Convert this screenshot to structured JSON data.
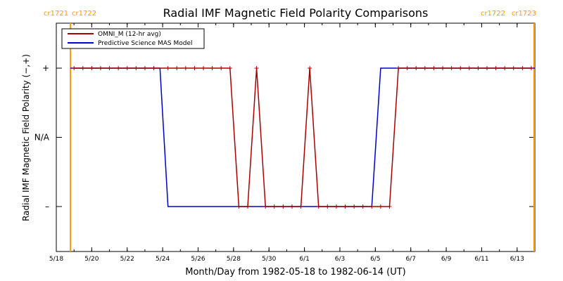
{
  "chart_data": {
    "type": "line",
    "title": "Radial IMF Magnetic Field Polarity Comparisons",
    "xlabel": "Month/Day from 1982-05-18 to 1982-06-14 (UT)",
    "ylabel": "Radial IMF Magnetic Field Polarity (−,+)",
    "xlim": [
      0,
      27
    ],
    "ylim": [
      -1.65,
      1.65
    ],
    "grid": false,
    "legend_position": "top-left",
    "xticks": [
      {
        "day": 0,
        "label": "5/18"
      },
      {
        "day": 2,
        "label": "5/20"
      },
      {
        "day": 4,
        "label": "5/22"
      },
      {
        "day": 6,
        "label": "5/24"
      },
      {
        "day": 8,
        "label": "5/26"
      },
      {
        "day": 10,
        "label": "5/28"
      },
      {
        "day": 12,
        "label": "5/30"
      },
      {
        "day": 14,
        "label": "6/1"
      },
      {
        "day": 16,
        "label": "6/3"
      },
      {
        "day": 18,
        "label": "6/5"
      },
      {
        "day": 20,
        "label": "6/7"
      },
      {
        "day": 22,
        "label": "6/9"
      },
      {
        "day": 24,
        "label": "6/11"
      },
      {
        "day": 26,
        "label": "6/13"
      }
    ],
    "yticks": [
      {
        "value": 1,
        "label": "+"
      },
      {
        "value": 0,
        "label": "N/A"
      },
      {
        "value": -1,
        "label": "–"
      }
    ],
    "carrington_markers": [
      {
        "day": 0.8,
        "left_label": "cr1721",
        "right_label": "cr1722",
        "color": "#ff9900",
        "label_side": "left"
      },
      {
        "day": 27,
        "left_label": "cr1722",
        "right_label": "cr1723",
        "color": "#ff9900",
        "label_side": "right"
      }
    ],
    "series": [
      {
        "name": "OMNI_M (12-hr avg)",
        "color": "#aa0000",
        "markers": true,
        "points": [
          [
            1,
            1
          ],
          [
            1.5,
            1
          ],
          [
            2,
            1
          ],
          [
            2.5,
            1
          ],
          [
            3,
            1
          ],
          [
            3.5,
            1
          ],
          [
            4,
            1
          ],
          [
            4.5,
            1
          ],
          [
            5,
            1
          ],
          [
            5.5,
            1
          ],
          [
            6.3,
            1
          ],
          [
            6.8,
            1
          ],
          [
            7.3,
            1
          ],
          [
            7.8,
            1
          ],
          [
            8.3,
            1
          ],
          [
            8.8,
            1
          ],
          [
            9.3,
            1
          ],
          [
            9.8,
            1
          ],
          [
            10.3,
            -1
          ],
          [
            10.8,
            -1
          ],
          [
            11.3,
            1
          ],
          [
            11.8,
            -1
          ],
          [
            12.3,
            -1
          ],
          [
            12.8,
            -1
          ],
          [
            13.3,
            -1
          ],
          [
            13.8,
            -1
          ],
          [
            14.3,
            1
          ],
          [
            14.8,
            -1
          ],
          [
            15.3,
            -1
          ],
          [
            15.8,
            -1
          ],
          [
            16.3,
            -1
          ],
          [
            16.8,
            -1
          ],
          [
            17.3,
            -1
          ],
          [
            17.8,
            -1
          ],
          [
            18.3,
            -1
          ],
          [
            18.8,
            -1
          ],
          [
            19.3,
            1
          ],
          [
            19.8,
            1
          ],
          [
            20.3,
            1
          ],
          [
            20.8,
            1
          ],
          [
            21.3,
            1
          ],
          [
            21.8,
            1
          ],
          [
            22.3,
            1
          ],
          [
            22.8,
            1
          ],
          [
            23.3,
            1
          ],
          [
            23.8,
            1
          ],
          [
            24.3,
            1
          ],
          [
            24.8,
            1
          ],
          [
            25.3,
            1
          ],
          [
            25.8,
            1
          ],
          [
            26.3,
            1
          ],
          [
            26.8,
            1
          ]
        ]
      },
      {
        "name": "Predictive Science MAS Model",
        "color": "#0000cc",
        "markers": false,
        "points": [
          [
            0.8,
            1
          ],
          [
            5.85,
            1
          ],
          [
            6.3,
            -1
          ],
          [
            17.8,
            -1
          ],
          [
            18.3,
            1
          ],
          [
            27,
            1
          ]
        ]
      }
    ]
  }
}
